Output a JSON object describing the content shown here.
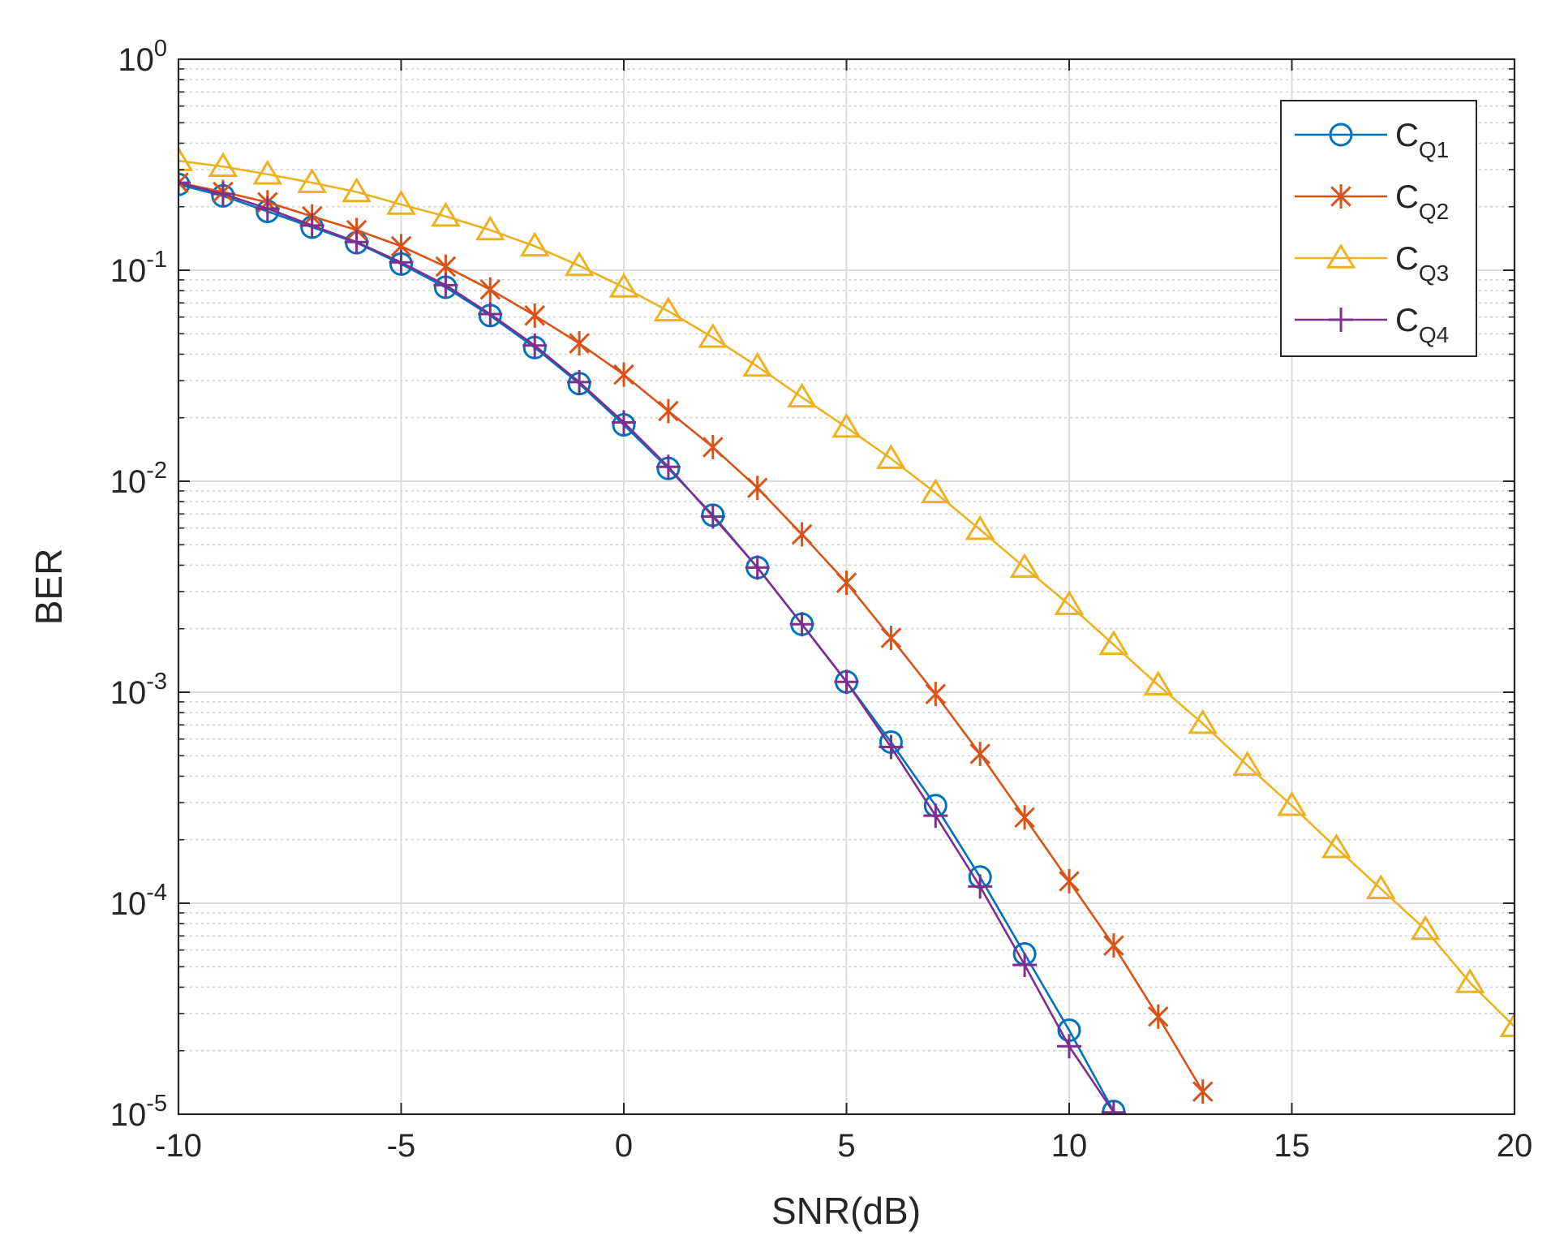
{
  "chart_data": {
    "type": "line",
    "xlabel": "SNR(dB)",
    "ylabel": "BER",
    "xlim": [
      -10,
      20
    ],
    "ylim": [
      1e-05,
      1
    ],
    "yscale": "log",
    "grid": true,
    "minor_grid": true,
    "legend_position": "top-right",
    "x_ticks": [
      -10,
      -5,
      0,
      5,
      10,
      15,
      20
    ],
    "x_tick_labels": [
      "-10",
      "-5",
      "0",
      "5",
      "10",
      "15",
      "20"
    ],
    "y_ticks": [
      1e-05,
      0.0001,
      0.001,
      0.01,
      0.1,
      1
    ],
    "y_tick_labels": [
      {
        "base": "10",
        "exp": "-5"
      },
      {
        "base": "10",
        "exp": "-4"
      },
      {
        "base": "10",
        "exp": "-3"
      },
      {
        "base": "10",
        "exp": "-2"
      },
      {
        "base": "10",
        "exp": "-1"
      },
      {
        "base": "10",
        "exp": "0"
      }
    ],
    "series": [
      {
        "name": "C",
        "name_sub": "Q1",
        "color": "#0072BD",
        "marker": "circle",
        "x": [
          -10,
          -9,
          -8,
          -7,
          -6,
          -5,
          -4,
          -3,
          -2,
          -1,
          0,
          1,
          2,
          3,
          4,
          5,
          6,
          7,
          8,
          9,
          10,
          11
        ],
        "y": [
          0.255,
          0.225,
          0.19,
          0.16,
          0.135,
          0.107,
          0.083,
          0.061,
          0.043,
          0.029,
          0.0185,
          0.0115,
          0.0069,
          0.0039,
          0.0021,
          0.00112,
          0.00058,
          0.00029,
          0.000133,
          5.75e-05,
          2.5e-05,
          1.03e-05
        ]
      },
      {
        "name": "C",
        "name_sub": "Q2",
        "color": "#D95319",
        "marker": "asterisk",
        "x": [
          -10,
          -9,
          -8,
          -7,
          -6,
          -5,
          -4,
          -3,
          -2,
          -1,
          0,
          1,
          2,
          3,
          4,
          5,
          6,
          7,
          8,
          9,
          10,
          11,
          12,
          13
        ],
        "y": [
          0.26,
          0.235,
          0.21,
          0.18,
          0.155,
          0.13,
          0.104,
          0.081,
          0.061,
          0.045,
          0.032,
          0.0215,
          0.0145,
          0.0093,
          0.0056,
          0.0033,
          0.00181,
          0.00098,
          0.00051,
          0.000255,
          0.000127,
          6.3e-05,
          2.9e-05,
          1.28e-05
        ]
      },
      {
        "name": "C",
        "name_sub": "Q3",
        "color": "#EDB120",
        "marker": "triangle",
        "x": [
          -10,
          -9,
          -8,
          -7,
          -6,
          -5,
          -4,
          -3,
          -2,
          -1,
          0,
          1,
          2,
          3,
          4,
          5,
          6,
          7,
          8,
          9,
          10,
          11,
          12,
          13,
          14,
          15,
          16,
          17,
          18,
          19,
          20
        ],
        "y": [
          0.33,
          0.31,
          0.285,
          0.26,
          0.235,
          0.205,
          0.18,
          0.155,
          0.13,
          0.105,
          0.083,
          0.064,
          0.048,
          0.035,
          0.025,
          0.018,
          0.0128,
          0.0088,
          0.0059,
          0.0039,
          0.0026,
          0.00168,
          0.00108,
          0.00071,
          0.00045,
          0.00029,
          0.000183,
          0.000117,
          7.5e-05,
          4.2e-05,
          2.6e-05
        ]
      },
      {
        "name": "C",
        "name_sub": "Q4",
        "color": "#7E2F8E",
        "marker": "plus",
        "x": [
          -10,
          -9,
          -8,
          -7,
          -6,
          -5,
          -4,
          -3,
          -2,
          -1,
          0,
          1,
          2,
          3,
          4,
          5,
          6,
          7,
          8,
          9,
          10,
          11
        ],
        "y": [
          0.26,
          0.23,
          0.196,
          0.163,
          0.136,
          0.109,
          0.085,
          0.062,
          0.044,
          0.0295,
          0.019,
          0.0117,
          0.0068,
          0.0039,
          0.0021,
          0.00112,
          0.00055,
          0.00026,
          0.00012,
          5.1e-05,
          2.1e-05,
          1.02e-05
        ]
      }
    ]
  }
}
